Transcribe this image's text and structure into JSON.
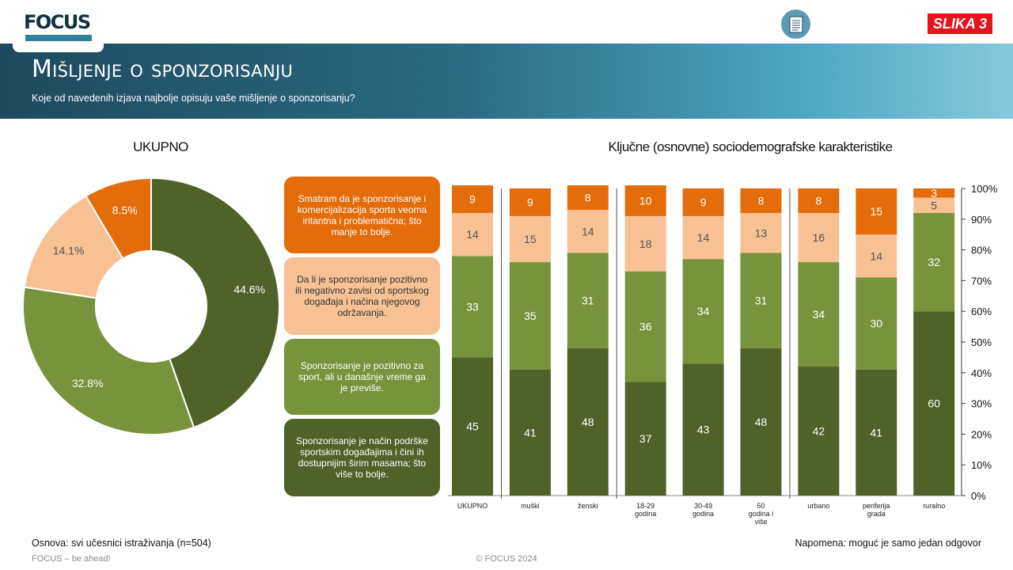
{
  "header": {
    "logo_text": "FOCUS",
    "badge": "SLIKA 3",
    "title": "Mišljenje o sponzorisanju",
    "subtitle": "Koje od navedenih izjava najbolje opisuju vaše mišljenje o sponzorisanju?"
  },
  "sections": {
    "left_heading": "UKUPNO",
    "right_heading": "Ključne (osnovne) sociodemografske karakteristike"
  },
  "legend": [
    {
      "text": "Smatram da je sponzorisanje i komercijalizacija sporta veoma iritantna i problematična; što manje to bolje.",
      "color": "#e46c0a",
      "text_color": "#ffffff"
    },
    {
      "text": "Da li je sponzorisanje pozitivno ili negativno zavisi od sportskog događaja i načina njegovog održavanja.",
      "color": "#f8c193",
      "text_color": "#333333"
    },
    {
      "text": "Sponzorisanje je pozitivno za sport, ali u današnje vreme ga je previše.",
      "color": "#77933c",
      "text_color": "#ffffff"
    },
    {
      "text": "Sponzorisanje je način podrške sportskim događajima i čini ih dostupnijim širim masama; što više to bolje.",
      "color": "#4f6228",
      "text_color": "#ffffff"
    }
  ],
  "footer": {
    "base": "Osnova: svi učesnici istraživanja (n=504)",
    "note": "Napomena: moguć je samo jedan odgovor",
    "tagline": "FOCUS – be ahead!",
    "copyright": "© FOCUS 2024"
  },
  "colors": {
    "irritating": "#e46c0a",
    "depends": "#f8c193",
    "too_much": "#77933c",
    "positive": "#4f6228"
  },
  "chart_data": [
    {
      "type": "pie",
      "title": "UKUPNO",
      "labels": [
        "Smatram da je sponzorisanje i komercijalizacija sporta veoma iritantna i problematična; što manje to bolje.",
        "Da li je sponzorisanje pozitivno ili negativno zavisi od sportskog događaja i načina njegovog održavanja.",
        "Sponzorisanje je pozitivno za sport, ali u današnje vreme ga je previše.",
        "Sponzorisanje je način podrške sportskim događajima i čini ih dostupnijim širim masama; što više to bolje."
      ],
      "values": [
        8.5,
        14.1,
        32.8,
        44.6
      ],
      "value_labels": [
        "8.5%",
        "14.1%",
        "32.8%",
        "44.6%"
      ],
      "colors": [
        "#e46c0a",
        "#f8c193",
        "#77933c",
        "#4f6228"
      ],
      "donut": true
    },
    {
      "type": "bar",
      "stacked": true,
      "title": "Ključne (osnovne) sociodemografske karakteristike",
      "categories": [
        "UKUPNO",
        "muški",
        "ženski",
        "18-29 godina",
        "30-49 godina",
        "50 godina i više",
        "urbano",
        "periferija grada",
        "ruralno"
      ],
      "category_lines": [
        [
          "UKUPNO"
        ],
        [
          "muški"
        ],
        [
          "ženski"
        ],
        [
          "18-29",
          "godina"
        ],
        [
          "30-49",
          "godina"
        ],
        [
          "50",
          "godina  i",
          "više"
        ],
        [
          "urbano"
        ],
        [
          "periferija",
          "grada"
        ],
        [
          "ruralno"
        ]
      ],
      "series": [
        {
          "name": "Sponzorisanje je način podrške sportskim događajima i čini ih dostupnijim širim masama; što više to bolje.",
          "color": "#4f6228",
          "values": [
            45,
            41,
            48,
            37,
            43,
            48,
            42,
            41,
            60
          ]
        },
        {
          "name": "Sponzorisanje je pozitivno za sport, ali u današnje vreme ga je previše.",
          "color": "#77933c",
          "values": [
            33,
            35,
            31,
            36,
            34,
            31,
            34,
            30,
            32
          ]
        },
        {
          "name": "Da li je sponzorisanje pozitivno ili negativno zavisi od sportskog događaja i načina njegovog održavanja.",
          "color": "#f8c193",
          "values": [
            14,
            15,
            14,
            18,
            14,
            13,
            16,
            14,
            5
          ]
        },
        {
          "name": "Smatram da je sponzorisanje i komercijalizacija sporta veoma iritantna i problematična; što manje to bolje.",
          "color": "#e46c0a",
          "values": [
            9,
            9,
            8,
            10,
            9,
            8,
            8,
            15,
            3
          ]
        }
      ],
      "y_ticks": [
        "0%",
        "10%",
        "20%",
        "30%",
        "40%",
        "50%",
        "60%",
        "70%",
        "80%",
        "90%",
        "100%"
      ],
      "ylim": [
        0,
        100
      ],
      "group_separators_after": [
        "UKUPNO",
        "ženski",
        "50 godina i više"
      ]
    }
  ]
}
